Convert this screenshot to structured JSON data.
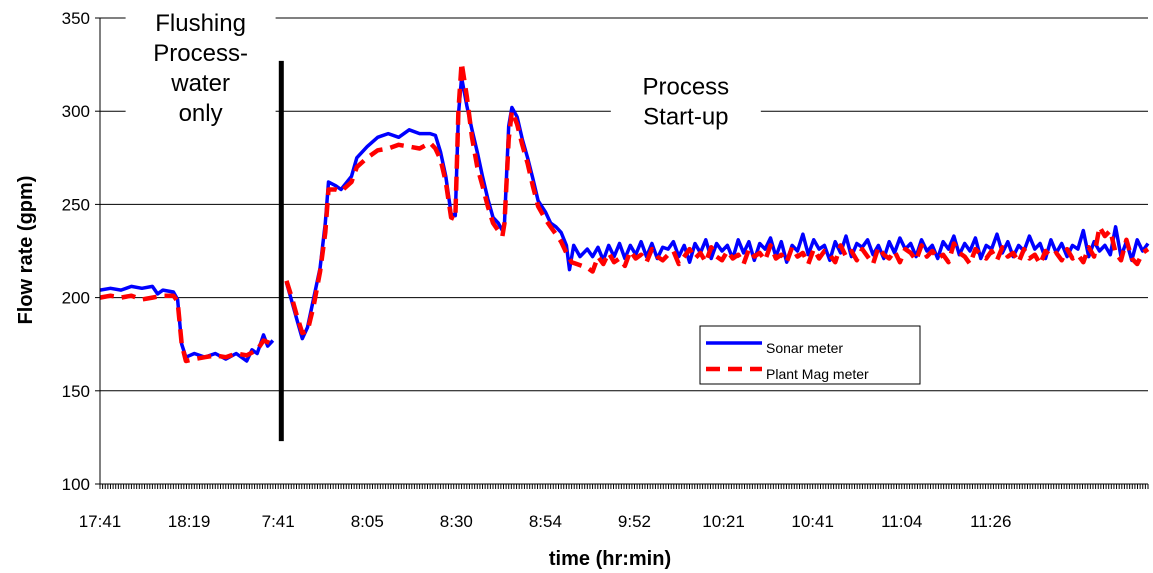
{
  "chart_data": {
    "type": "line",
    "title": "",
    "xlabel": "time (hr:min)",
    "ylabel": "Flow rate (gpm)",
    "ylim": [
      100,
      350
    ],
    "yticks": [
      100,
      150,
      200,
      250,
      300,
      350
    ],
    "grid": true,
    "x_tick_labels": [
      "17:41",
      "18:19",
      "7:41",
      "8:05",
      "8:30",
      "8:54",
      "9:52",
      "10:21",
      "10:41",
      "11:04",
      "11:26"
    ],
    "x_index_range": [
      0,
      100
    ],
    "x_tick_positions": [
      0,
      8.5,
      17,
      25.5,
      34,
      42.5,
      51,
      59.5,
      68,
      76.5,
      85
    ],
    "divider": {
      "x": 17.3,
      "y_range": [
        123,
        327
      ]
    },
    "annotations": [
      {
        "lines": [
          "Flushing",
          "Process-",
          "water",
          "only"
        ],
        "x": 9.6,
        "y": 343
      },
      {
        "lines": [
          "Process",
          "Start-up"
        ],
        "x": 55.9,
        "y": 309
      }
    ],
    "legend": {
      "position": "center-right",
      "entries": [
        "Sonar meter",
        "Plant Mag meter"
      ]
    },
    "colors": {
      "sonar": "#0000FF",
      "mag": "#FF0000",
      "grid": "#000000"
    },
    "series": [
      {
        "name": "Sonar meter",
        "segments": [
          [
            [
              0,
              204
            ],
            [
              1,
              205
            ],
            [
              2,
              204
            ],
            [
              3,
              206
            ],
            [
              4,
              205
            ],
            [
              5,
              206
            ],
            [
              5.5,
              202
            ],
            [
              6,
              204
            ],
            [
              7,
              203
            ],
            [
              7.4,
              199
            ],
            [
              7.8,
              175
            ],
            [
              8.2,
              168
            ],
            [
              9,
              170
            ],
            [
              10,
              168
            ],
            [
              11,
              170
            ],
            [
              12,
              167
            ],
            [
              13,
              170
            ],
            [
              14,
              166
            ],
            [
              14.5,
              172
            ],
            [
              15,
              170
            ],
            [
              15.6,
              180
            ],
            [
              16,
              174
            ],
            [
              16.5,
              177
            ]
          ],
          [
            [
              17.8,
              208
            ],
            [
              18.3,
              198
            ],
            [
              18.8,
              188
            ],
            [
              19.3,
              178
            ],
            [
              19.8,
              184
            ],
            [
              20.4,
              200
            ],
            [
              21,
              216
            ],
            [
              21.5,
              240
            ],
            [
              21.8,
              262
            ],
            [
              22.5,
              260
            ],
            [
              23,
              258
            ],
            [
              24,
              265
            ],
            [
              24.5,
              275
            ],
            [
              25.5,
              281
            ],
            [
              26.5,
              286
            ],
            [
              27.5,
              288
            ],
            [
              28.5,
              286
            ],
            [
              29.5,
              290
            ],
            [
              30.5,
              288
            ],
            [
              31.5,
              288
            ],
            [
              32,
              287
            ],
            [
              32.5,
              278
            ],
            [
              33,
              265
            ],
            [
              33.5,
              245
            ],
            [
              33.9,
              244
            ],
            [
              34.2,
              298
            ],
            [
              34.5,
              318
            ],
            [
              35,
              303
            ],
            [
              35.5,
              290
            ],
            [
              36,
              278
            ],
            [
              36.5,
              265
            ],
            [
              37,
              253
            ],
            [
              37.5,
              243
            ],
            [
              38,
              240
            ],
            [
              38.4,
              236
            ],
            [
              38.6,
              240
            ],
            [
              39,
              292
            ],
            [
              39.3,
              302
            ],
            [
              39.8,
              297
            ],
            [
              40.3,
              285
            ],
            [
              40.8,
              275
            ],
            [
              41.3,
              264
            ],
            [
              41.8,
              252
            ],
            [
              42.5,
              246
            ],
            [
              43,
              240
            ],
            [
              43.5,
              238
            ],
            [
              44,
              235
            ],
            [
              44.5,
              228
            ],
            [
              44.8,
              215
            ],
            [
              45.2,
              228
            ],
            [
              45.8,
              222
            ],
            [
              46.5,
              226
            ],
            [
              47,
              222
            ]
          ]
        ]
      },
      {
        "name": "Plant Mag meter",
        "segments": [
          [
            [
              0,
              200
            ],
            [
              1,
              201
            ],
            [
              2,
              200
            ],
            [
              3,
              201
            ],
            [
              4,
              199
            ],
            [
              5,
              200
            ],
            [
              6,
              201
            ],
            [
              7,
              201
            ],
            [
              7.4,
              198
            ],
            [
              7.8,
              175
            ],
            [
              8.2,
              166
            ],
            [
              9,
              167
            ],
            [
              10,
              168
            ],
            [
              11,
              169
            ],
            [
              12,
              168
            ],
            [
              13,
              170
            ],
            [
              14,
              169
            ],
            [
              15,
              172
            ],
            [
              15.6,
              177
            ],
            [
              16.5,
              175
            ]
          ],
          [
            [
              17.8,
              209
            ],
            [
              18.3,
              200
            ],
            [
              18.8,
              190
            ],
            [
              19.3,
              181
            ],
            [
              19.8,
              182
            ],
            [
              20.4,
              196
            ],
            [
              21,
              214
            ],
            [
              21.5,
              235
            ],
            [
              21.8,
              258
            ],
            [
              22.5,
              258
            ],
            [
              23,
              257
            ],
            [
              24,
              262
            ],
            [
              24.5,
              270
            ],
            [
              25.5,
              275
            ],
            [
              26.5,
              279
            ],
            [
              27.5,
              280
            ],
            [
              28.5,
              282
            ],
            [
              29.5,
              281
            ],
            [
              30.5,
              280
            ],
            [
              31.5,
              283
            ],
            [
              32,
              280
            ],
            [
              32.5,
              274
            ],
            [
              33,
              262
            ],
            [
              33.5,
              243
            ],
            [
              33.9,
              242
            ],
            [
              34.2,
              300
            ],
            [
              34.5,
              326
            ],
            [
              35,
              308
            ],
            [
              35.5,
              286
            ],
            [
              36,
              270
            ],
            [
              36.5,
              260
            ],
            [
              37,
              249
            ],
            [
              37.5,
              240
            ],
            [
              38,
              236
            ],
            [
              38.4,
              233
            ],
            [
              38.6,
              240
            ],
            [
              39,
              285
            ],
            [
              39.3,
              300
            ],
            [
              39.8,
              293
            ],
            [
              40.3,
              282
            ],
            [
              40.8,
              272
            ],
            [
              41.3,
              260
            ],
            [
              41.8,
              249
            ],
            [
              42.5,
              242
            ],
            [
              43,
              238
            ],
            [
              43.5,
              234
            ],
            [
              44,
              230
            ],
            [
              44.5,
              224
            ],
            [
              45,
              219
            ],
            [
              45.5,
              218
            ],
            [
              46.5,
              216
            ],
            [
              47,
              214
            ]
          ]
        ]
      }
    ],
    "steady_state": {
      "x_range": [
        47,
        100
      ],
      "sonar_values": [
        222,
        227,
        220,
        228,
        222,
        229,
        221,
        228,
        223,
        230,
        222,
        229,
        221,
        227,
        226,
        230,
        222,
        228,
        219,
        229,
        224,
        231,
        221,
        229,
        225,
        228,
        221,
        231,
        224,
        230,
        220,
        229,
        226,
        232,
        222,
        230,
        219,
        228,
        225,
        234,
        223,
        231,
        226,
        228,
        220,
        230,
        224,
        233,
        222,
        229,
        227,
        231,
        223,
        228,
        221,
        230,
        224,
        232,
        226,
        229,
        222,
        231,
        225,
        228,
        221,
        230,
        226,
        233,
        223,
        229,
        225,
        232,
        221,
        228,
        226,
        234,
        224,
        230,
        222,
        228,
        225,
        233,
        226,
        229,
        221,
        231,
        224,
        229,
        222,
        228,
        226,
        236,
        222,
        230,
        225,
        228,
        223,
        238,
        222,
        230,
        220,
        231,
        225,
        229
      ],
      "mag_values": [
        216,
        222,
        218,
        224,
        219,
        221,
        217,
        225,
        221,
        223,
        219,
        226,
        222,
        220,
        223,
        225,
        218,
        222,
        226,
        221,
        224,
        219,
        227,
        222,
        220,
        225,
        221,
        223,
        218,
        226,
        222,
        224,
        220,
        228,
        221,
        223,
        219,
        227,
        222,
        224,
        218,
        226,
        221,
        225,
        223,
        219,
        228,
        222,
        225,
        220,
        226,
        222,
        218,
        227,
        223,
        221,
        225,
        219,
        226,
        224,
        220,
        228,
        222,
        225,
        221,
        223,
        219,
        229,
        224,
        222,
        218,
        226,
        223,
        221,
        225,
        220,
        227,
        222,
        224,
        219,
        226,
        221,
        223,
        218,
        225,
        222,
        224,
        220,
        226,
        221,
        223,
        219,
        227,
        222,
        238,
        233,
        236,
        224,
        220,
        231,
        221,
        218,
        224,
        226
      ],
      "jump": {
        "at": 97.2,
        "sonar_peak": 238,
        "mag_peak": 238
      }
    }
  }
}
